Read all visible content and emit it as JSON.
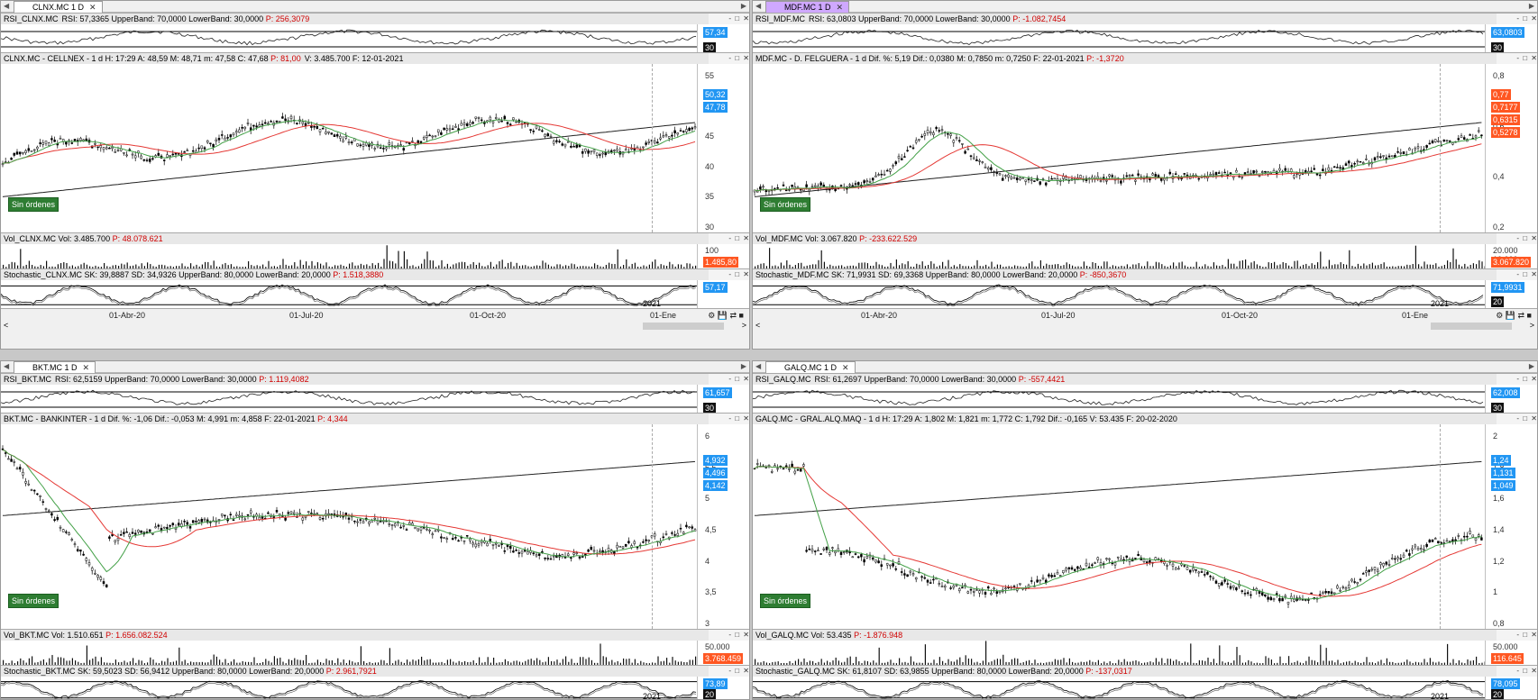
{
  "panels": [
    {
      "id": "clnx",
      "tab": "CLNX.MC 1 D",
      "active": false,
      "rsi": {
        "label": "RSI_CLNX.MC",
        "text": "RSI: 57,3365  UpperBand: 70,0000  LowerBand: 30,0000",
        "p": "P: 256,3079",
        "tags": [
          "57,34",
          "30"
        ]
      },
      "price": {
        "text": "CLNX.MC - CELLNEX -  1 d  H: 17:29  A: 48,59  M: 48,71  m: 47,58  C: 47,68",
        "p": "P: 81,00",
        "extra": "V: 3.485.700  F: 12-01-2021",
        "ticks": [
          "55",
          "50",
          "45",
          "40",
          "35",
          "30"
        ],
        "tags": [
          "50,32",
          "47,78"
        ]
      },
      "vol": {
        "text": "Vol_CLNX.MC  Vol: 3.485.700",
        "p": "P: 48.078.621",
        "ticks": [
          "100"
        ],
        "tags": [
          "1.485,80"
        ]
      },
      "stoch": {
        "text": "Stochastic_CLNX.MC  SK: 39,8887  SD: 34,9326  UpperBand: 80,0000  LowerBand: 20,0000",
        "p": "P: 1.518,3880",
        "tags": [
          "57,17"
        ]
      },
      "dates": [
        "01-Abr-20",
        "01-Jul-20",
        "01-Oct-20",
        "01-Ene"
      ],
      "year": "2021",
      "sin": "Sin órdenes"
    },
    {
      "id": "mdf",
      "tab": "MDF.MC 1 D",
      "active": true,
      "rsi": {
        "label": "RSI_MDF.MC",
        "text": "RSI: 63,0803  UpperBand: 70,0000  LowerBand: 30,0000",
        "p": "P: -1.082,7454",
        "tags": [
          "63,0803",
          "30"
        ]
      },
      "price": {
        "text": "MDF.MC - D. FELGUERA -  1 d  Dif. %: 5,19  Dif.: 0,0380  M: 0,7850  m: 0,7250  F: 22-01-2021",
        "p": "P: -1,3720",
        "extra": "",
        "ticks": [
          "0,8",
          "0,6",
          "0,4",
          "0,2"
        ],
        "tags": [
          "0,77",
          "0,7177",
          "0,6315",
          "0,5278"
        ]
      },
      "vol": {
        "text": "Vol_MDF.MC  Vol: 3.067.820",
        "p": "P: -233.622.529",
        "ticks": [
          "20.000",
          "10.000"
        ],
        "tags": [
          "3.067.820"
        ]
      },
      "stoch": {
        "text": "Stochastic_MDF.MC  SK: 71,9931  SD: 69,3368  UpperBand: 80,0000  LowerBand: 20,0000",
        "p": "P: -850,3670",
        "tags": [
          "71,9931",
          "20"
        ]
      },
      "dates": [
        "01-Abr-20",
        "01-Jul-20",
        "01-Oct-20",
        "01-Ene"
      ],
      "year": "2021",
      "sin": "Sin órdenes"
    },
    {
      "id": "bkt",
      "tab": "BKT.MC 1 D",
      "active": false,
      "rsi": {
        "label": "RSI_BKT.MC",
        "text": "RSI: 62,5159  UpperBand: 70,0000  LowerBand: 30,0000",
        "p": "P: 1.119,4082",
        "tags": [
          "61,657",
          "30"
        ]
      },
      "price": {
        "text": "BKT.MC - BANKINTER -  1 d  Dif. %: -1,06  Dif.: -0,053  M: 4,991  m: 4,858  F: 22-01-2021",
        "p": "P: 4,344",
        "extra": "",
        "ticks": [
          "6",
          "5,5",
          "5",
          "4,5",
          "4",
          "3,5",
          "3"
        ],
        "tags": [
          "4,932",
          "4,496",
          "4,142"
        ]
      },
      "vol": {
        "text": "Vol_BKT.MC  Vol: 1.510.651",
        "p": "P: 1.656.082.524",
        "ticks": [
          "50.000"
        ],
        "tags": [
          "3.768.459"
        ]
      },
      "stoch": {
        "text": "Stochastic_BKT.MC  SK: 59,5023  SD: 56,9412  UpperBand: 80,0000  LowerBand: 20,0000",
        "p": "P: 2.961,7921",
        "tags": [
          "73,89",
          "20"
        ]
      },
      "dates": [],
      "year": "2021",
      "sin": "Sin órdenes"
    },
    {
      "id": "galq",
      "tab": "GALQ.MC 1 D",
      "active": false,
      "rsi": {
        "label": "RSI_GALQ.MC",
        "text": "RSI: 61,2697  UpperBand: 70,0000  LowerBand: 30,0000",
        "p": "P: -557,4421",
        "tags": [
          "62,008",
          "30"
        ]
      },
      "price": {
        "text": "GALQ.MC - GRAL.ALQ.MAQ -  1 d  H: 17:29  A: 1,802  M: 1,821  m: 1,772  C: 1,792  Dif.: -0,165  V: 53.435  F: 20-02-2020",
        "p": "",
        "extra": "",
        "ticks": [
          "2",
          "1,8",
          "1,6",
          "1,4",
          "1,2",
          "1",
          "0,8"
        ],
        "tags": [
          "1,24",
          "1,131",
          "1,049"
        ]
      },
      "vol": {
        "text": "Vol_GALQ.MC  Vol: 53.435",
        "p": "P: -1.876.948",
        "ticks": [
          "50.000"
        ],
        "tags": [
          "116.645"
        ]
      },
      "stoch": {
        "text": "Stochastic_GALQ.MC  SK: 61,8107  SD: 63,9855  UpperBand: 80,0000  LowerBand: 20,0000",
        "p": "P: -137,0317",
        "tags": [
          "78,095",
          "20"
        ]
      },
      "dates": [],
      "year": "2021",
      "sin": "Sin órdenes"
    }
  ],
  "ctrl": "- □ ✕"
}
